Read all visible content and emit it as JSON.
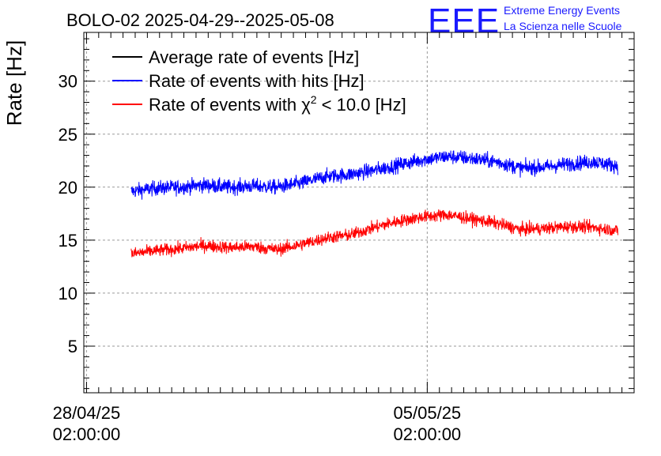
{
  "header": {
    "title": "BOLO-02 2025-04-29--2025-05-08",
    "logo_text": "EEE",
    "org_line1": "Extreme Energy Events",
    "org_line2": "La Scienza nelle Scuole"
  },
  "colors": {
    "average": "#000000",
    "hits": "#0000ff",
    "chi2": "#ff0000",
    "logo": "#1a1aff",
    "grid": "#9a9a9a"
  },
  "chart_data": {
    "type": "line",
    "ylabel": "Rate [Hz]",
    "xlabel": "",
    "ylim": [
      0.6,
      34.6
    ],
    "xlim": [
      "2025-04-28T00:40:00",
      "2025-05-09T08:00:00"
    ],
    "grid": true,
    "legend_position": "top-left",
    "y_ticks": [
      5,
      10,
      15,
      20,
      25,
      30
    ],
    "x_ticks": [
      {
        "t": "2025-04-28T02:00:00",
        "date": "28/04/25",
        "time": "02:00:00"
      },
      {
        "t": "2025-05-05T02:00:00",
        "date": "05/05/25",
        "time": "02:00:00"
      }
    ],
    "legend": [
      {
        "key": "average",
        "text": "Average rate of events [Hz]",
        "sup": ""
      },
      {
        "key": "hits",
        "text": "Rate of events with hits [Hz]",
        "sup": ""
      },
      {
        "key": "chi2",
        "text": "Rate of events with χ",
        "sup": "2",
        "tail": " < 10.0 [Hz]"
      }
    ],
    "series": [
      {
        "name": "Rate of events with hits [Hz]",
        "key": "hits",
        "noise_amplitude": 1.3,
        "points": [
          [
            "2025-04-29T00:00",
            19.6
          ],
          [
            "2025-04-29T12:00",
            19.9
          ],
          [
            "2025-04-30T00:00",
            20.0
          ],
          [
            "2025-04-30T12:00",
            20.2
          ],
          [
            "2025-05-01T00:00",
            20.0
          ],
          [
            "2025-05-01T12:00",
            20.1
          ],
          [
            "2025-05-02T00:00",
            20.0
          ],
          [
            "2025-05-02T12:00",
            20.4
          ],
          [
            "2025-05-03T00:00",
            21.0
          ],
          [
            "2025-05-03T12:00",
            21.2
          ],
          [
            "2025-05-04T00:00",
            21.6
          ],
          [
            "2025-05-04T12:00",
            22.1
          ],
          [
            "2025-05-05T00:00",
            22.6
          ],
          [
            "2025-05-05T12:00",
            22.9
          ],
          [
            "2025-05-06T00:00",
            22.7
          ],
          [
            "2025-05-06T12:00",
            22.4
          ],
          [
            "2025-05-07T00:00",
            21.8
          ],
          [
            "2025-05-07T12:00",
            21.9
          ],
          [
            "2025-05-08T00:00",
            22.2
          ],
          [
            "2025-05-08T12:00",
            22.4
          ],
          [
            "2025-05-09T00:00",
            22.0
          ]
        ]
      },
      {
        "name": "Rate of events with χ2 < 10.0 [Hz]",
        "key": "chi2",
        "noise_amplitude": 1.1,
        "points": [
          [
            "2025-04-29T00:00",
            13.7
          ],
          [
            "2025-04-29T12:00",
            14.0
          ],
          [
            "2025-04-30T00:00",
            14.2
          ],
          [
            "2025-04-30T12:00",
            14.5
          ],
          [
            "2025-05-01T00:00",
            14.3
          ],
          [
            "2025-05-01T12:00",
            14.4
          ],
          [
            "2025-05-02T00:00",
            14.1
          ],
          [
            "2025-05-02T12:00",
            14.6
          ],
          [
            "2025-05-03T00:00",
            15.2
          ],
          [
            "2025-05-03T12:00",
            15.5
          ],
          [
            "2025-05-04T00:00",
            16.2
          ],
          [
            "2025-05-04T12:00",
            16.8
          ],
          [
            "2025-05-05T00:00",
            17.2
          ],
          [
            "2025-05-05T12:00",
            17.4
          ],
          [
            "2025-05-06T00:00",
            17.0
          ],
          [
            "2025-05-06T12:00",
            16.6
          ],
          [
            "2025-05-07T00:00",
            16.0
          ],
          [
            "2025-05-07T12:00",
            16.1
          ],
          [
            "2025-05-08T00:00",
            16.3
          ],
          [
            "2025-05-08T12:00",
            16.2
          ],
          [
            "2025-05-09T00:00",
            15.9
          ]
        ]
      },
      {
        "name": "Average rate of events [Hz]",
        "key": "average",
        "noise_amplitude": 0,
        "points": []
      }
    ]
  }
}
